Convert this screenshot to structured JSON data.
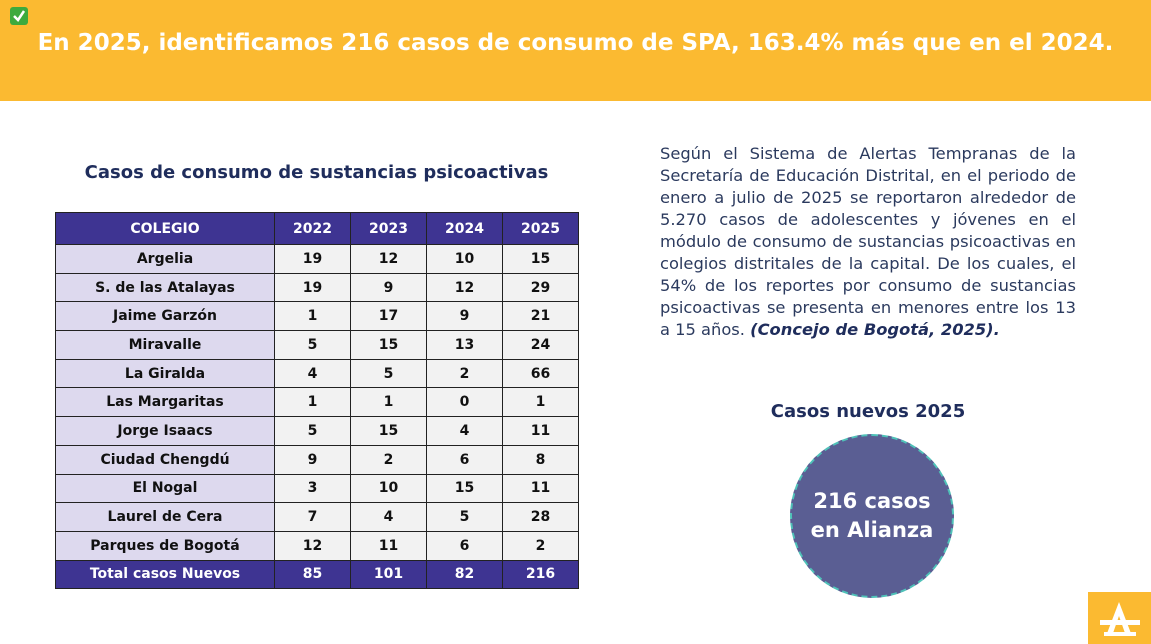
{
  "header": {
    "title": "En 2025, identificamos 216 casos de consumo de SPA, 163.4% más que en el 2024."
  },
  "table": {
    "title": "Casos de consumo de sustancias psicoactivas",
    "columns": [
      "COLEGIO",
      "2022",
      "2023",
      "2024",
      "2025"
    ],
    "rows": [
      [
        "Argelia",
        19,
        12,
        10,
        15
      ],
      [
        "S. de las Atalayas",
        19,
        9,
        12,
        29
      ],
      [
        "Jaime Garzón",
        1,
        17,
        9,
        21
      ],
      [
        "Miravalle",
        5,
        15,
        13,
        24
      ],
      [
        "La Giralda",
        4,
        5,
        2,
        66
      ],
      [
        "Las Margaritas",
        1,
        1,
        0,
        1
      ],
      [
        "Jorge Isaacs",
        5,
        15,
        4,
        11
      ],
      [
        "Ciudad Chengdú",
        9,
        2,
        6,
        8
      ],
      [
        "El Nogal",
        3,
        10,
        15,
        11
      ],
      [
        "Laurel de Cera",
        7,
        4,
        5,
        28
      ],
      [
        "Parques de Bogotá",
        12,
        11,
        6,
        2
      ]
    ],
    "total": [
      "Total casos Nuevos",
      85,
      101,
      82,
      216
    ]
  },
  "paragraph": {
    "text": "Según el Sistema de Alertas Tempranas de la Secretaría de Educación Distrital, en el periodo de enero a julio de 2025 se reportaron alrededor de 5.270 casos de adolescentes y jóvenes en el módulo de consumo de sustancias psicoactivas en colegios distritales de la capital. De los cuales, el 54% de los reportes por consumo de sustancias psicoactivas se presenta en menores entre los 13 a 15 años.",
    "citation": "(Concejo de Bogotá,  2025)."
  },
  "highlight": {
    "title": "Casos nuevos 2025",
    "label": "216 casos en Alianza"
  }
}
